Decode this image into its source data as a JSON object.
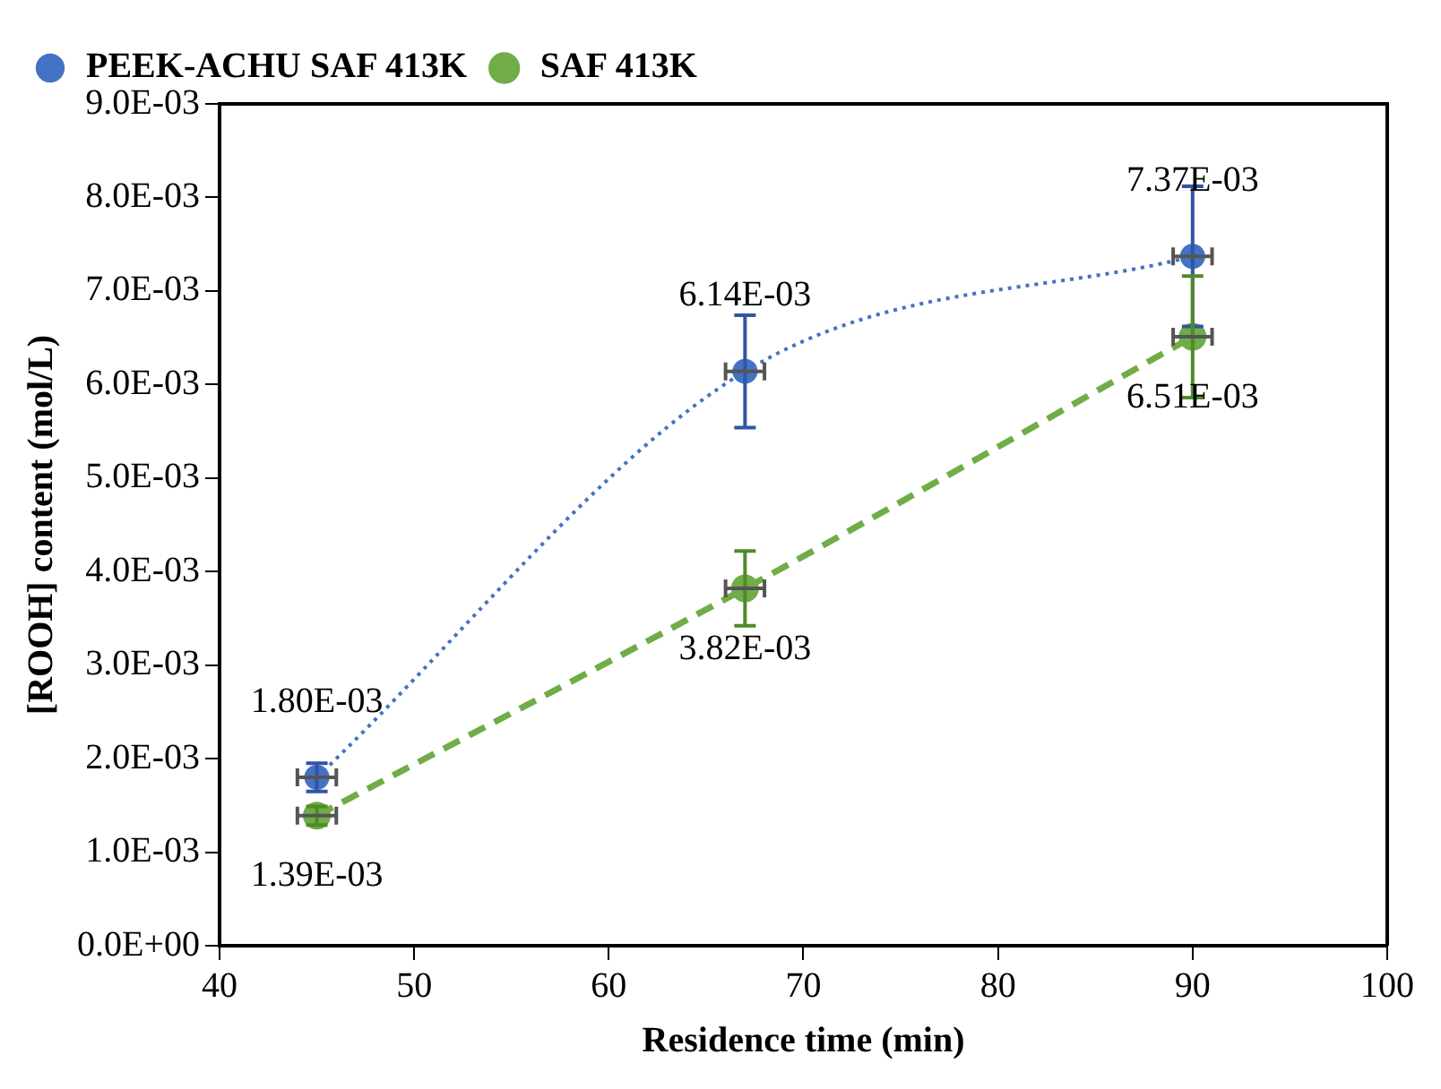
{
  "chart_data": {
    "type": "line",
    "xlabel": "Residence time (min)",
    "ylabel": "[ROOH] content (mol/L)",
    "xlim": [
      40,
      100
    ],
    "xticks": [
      40,
      50,
      60,
      70,
      80,
      90,
      100
    ],
    "ylim": [
      0,
      0.009
    ],
    "yticks": [
      {
        "value": 0,
        "label": "0.0E+00"
      },
      {
        "value": 0.001,
        "label": "1.0E-03"
      },
      {
        "value": 0.002,
        "label": "2.0E-03"
      },
      {
        "value": 0.003,
        "label": "3.0E-03"
      },
      {
        "value": 0.004,
        "label": "4.0E-03"
      },
      {
        "value": 0.005,
        "label": "5.0E-03"
      },
      {
        "value": 0.006,
        "label": "6.0E-03"
      },
      {
        "value": 0.007,
        "label": "7.0E-03"
      },
      {
        "value": 0.008,
        "label": "8.0E-03"
      },
      {
        "value": 0.009,
        "label": "9.0E-03"
      }
    ],
    "grid": false,
    "legend": "top left",
    "marker": "circle",
    "series": [
      {
        "name": "PEEK-ACHU SAF 413K",
        "line_style": "dotted",
        "color": "#4472c4",
        "x": [
          45,
          67,
          90
        ],
        "values": [
          0.0018,
          0.00614,
          0.00737
        ],
        "errors": [
          0.00015,
          0.0006,
          0.00075
        ],
        "xerrors": [
          1,
          1,
          1
        ],
        "value_labels": [
          "1.80E-03",
          "6.14E-03",
          "7.37E-03"
        ]
      },
      {
        "name": "SAF 413K",
        "line_style": "dashed",
        "color": "#70ad47",
        "x": [
          45,
          67,
          90
        ],
        "values": [
          0.00139,
          0.00382,
          0.00651
        ],
        "errors": [
          0.0001,
          0.0004,
          0.00065
        ],
        "xerrors": [
          1,
          1,
          1
        ],
        "value_labels": [
          "1.39E-03",
          "3.82E-03",
          "6.51E-03"
        ]
      }
    ]
  }
}
